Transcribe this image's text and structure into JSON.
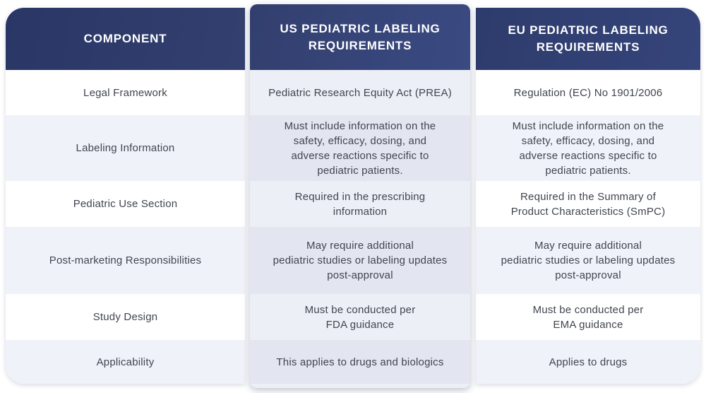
{
  "table": {
    "columns": [
      {
        "key": "component",
        "header": "COMPONENT"
      },
      {
        "key": "us",
        "header": "US PEDIATRIC LABELING\nREQUIREMENTS"
      },
      {
        "key": "eu",
        "header": "EU PEDIATRIC LABELING\nREQUIREMENTS"
      }
    ],
    "rows": [
      {
        "component": "Legal Framework",
        "us": "Pediatric Research Equity Act (PREA)",
        "eu": "Regulation (EC) No 1901/2006"
      },
      {
        "component": "Labeling Information",
        "us": "Must include information on the\nsafety, efficacy, dosing, and\nadverse reactions specific to\npediatric patients.",
        "eu": "Must include information on the\nsafety, efficacy, dosing, and\nadverse reactions specific to\npediatric patients."
      },
      {
        "component": "Pediatric Use Section",
        "us": "Required in the prescribing\ninformation",
        "eu": "Required in the Summary of\nProduct Characteristics (SmPC)"
      },
      {
        "component": "Post-marketing Responsibilities",
        "us": "May require additional\npediatric studies or labeling updates\npost-approval",
        "eu": "May require additional\npediatric studies or labeling updates\npost-approval"
      },
      {
        "component": "Study Design",
        "us": "Must be conducted per\nFDA guidance",
        "eu": "Must be conducted per\nEMA guidance"
      },
      {
        "component": "Applicability",
        "us": "This applies to drugs and biologics",
        "eu": "Applies to drugs"
      }
    ]
  },
  "colors": {
    "header_navy_left": "#2d3a6b",
    "header_navy_mid": "#36447a",
    "header_navy_right": "#31406f",
    "row_tint_side": "#f0f2f9",
    "row_tint_mid_light": "#edeff6",
    "row_tint_mid_dark": "#e3e6f1",
    "body_text": "#40454f",
    "header_text": "#ffffff"
  }
}
